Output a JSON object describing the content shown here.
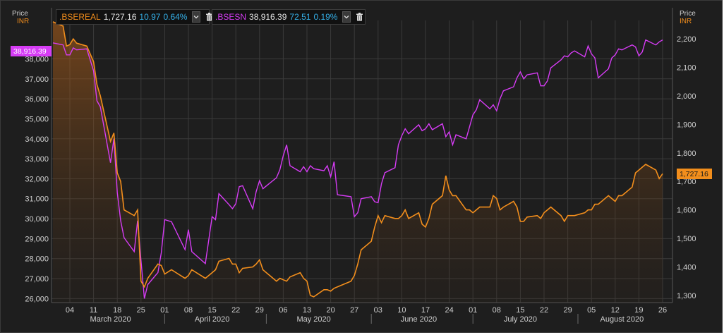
{
  "header": {
    "left_axis_head": {
      "line1": "Price",
      "line2": "INR"
    },
    "right_axis_head": {
      "line1": "Price",
      "line2": "INR"
    }
  },
  "legend": [
    {
      "name": ".BSEREAL",
      "value": "1,727.16",
      "change": "10.97",
      "pct": "0.64%",
      "color": "#f28e1c",
      "dropdown_icon": "chevron-down-icon",
      "delete_icon": "trash-icon"
    },
    {
      "name": ".BSESN",
      "value": "38,916.39",
      "change": "72.51",
      "pct": "0.19%",
      "color": "#d63cf5",
      "dropdown_icon": "chevron-down-icon",
      "delete_icon": "trash-icon"
    }
  ],
  "badges": {
    "left": "38,916.39",
    "right": "1,727.16"
  },
  "colors": {
    "bsesn": "#d63cf5",
    "bsereal": "#f28e1c",
    "background": "#1e1e1e",
    "grid": "#3b3b3b"
  },
  "chart_data": {
    "type": "line",
    "x": [
      "2020-02-28",
      "2020-03-02",
      "2020-03-03",
      "2020-03-04",
      "2020-03-05",
      "2020-03-06",
      "2020-03-09",
      "2020-03-11",
      "2020-03-12",
      "2020-03-13",
      "2020-03-16",
      "2020-03-17",
      "2020-03-18",
      "2020-03-19",
      "2020-03-20",
      "2020-03-23",
      "2020-03-24",
      "2020-03-25",
      "2020-03-26",
      "2020-03-27",
      "2020-03-30",
      "2020-03-31",
      "2020-04-01",
      "2020-04-03",
      "2020-04-07",
      "2020-04-08",
      "2020-04-09",
      "2020-04-13",
      "2020-04-15",
      "2020-04-16",
      "2020-04-17",
      "2020-04-20",
      "2020-04-21",
      "2020-04-22",
      "2020-04-23",
      "2020-04-24",
      "2020-04-27",
      "2020-04-28",
      "2020-04-29",
      "2020-04-30",
      "2020-05-04",
      "2020-05-05",
      "2020-05-06",
      "2020-05-07",
      "2020-05-08",
      "2020-05-11",
      "2020-05-12",
      "2020-05-13",
      "2020-05-14",
      "2020-05-15",
      "2020-05-18",
      "2020-05-19",
      "2020-05-20",
      "2020-05-21",
      "2020-05-22",
      "2020-05-26",
      "2020-05-27",
      "2020-05-28",
      "2020-05-29",
      "2020-06-01",
      "2020-06-02",
      "2020-06-03",
      "2020-06-04",
      "2020-06-05",
      "2020-06-08",
      "2020-06-09",
      "2020-06-10",
      "2020-06-11",
      "2020-06-12",
      "2020-06-15",
      "2020-06-16",
      "2020-06-17",
      "2020-06-18",
      "2020-06-19",
      "2020-06-22",
      "2020-06-23",
      "2020-06-24",
      "2020-06-25",
      "2020-06-26",
      "2020-06-29",
      "2020-06-30",
      "2020-07-01",
      "2020-07-02",
      "2020-07-03",
      "2020-07-06",
      "2020-07-07",
      "2020-07-08",
      "2020-07-09",
      "2020-07-10",
      "2020-07-13",
      "2020-07-14",
      "2020-07-15",
      "2020-07-16",
      "2020-07-17",
      "2020-07-20",
      "2020-07-21",
      "2020-07-22",
      "2020-07-23",
      "2020-07-24",
      "2020-07-27",
      "2020-07-28",
      "2020-07-29",
      "2020-07-30",
      "2020-07-31",
      "2020-08-03",
      "2020-08-04",
      "2020-08-05",
      "2020-08-06",
      "2020-08-07",
      "2020-08-10",
      "2020-08-11",
      "2020-08-12",
      "2020-08-13",
      "2020-08-14",
      "2020-08-17",
      "2020-08-18",
      "2020-08-19",
      "2020-08-20",
      "2020-08-21",
      "2020-08-24",
      "2020-08-25",
      "2020-08-26"
    ],
    "series": [
      {
        "name": ".BSESN",
        "axis": "left",
        "values": [
          38800,
          38700,
          38200,
          38200,
          38550,
          38450,
          38500,
          37400,
          35900,
          35600,
          32800,
          34000,
          31300,
          29900,
          29050,
          28350,
          29900,
          27900,
          26000,
          26700,
          27300,
          28300,
          29950,
          29850,
          28450,
          29450,
          28350,
          27750,
          30100,
          29950,
          31250,
          30700,
          30500,
          30750,
          31600,
          31650,
          30500,
          31350,
          31900,
          31500,
          32050,
          32450,
          33150,
          33700,
          32650,
          32350,
          32600,
          32350,
          32650,
          32500,
          32400,
          32650,
          32100,
          32850,
          31200,
          31100,
          30100,
          30300,
          31000,
          31100,
          30850,
          30800,
          31750,
          32300,
          32550,
          33700,
          34150,
          34500,
          34250,
          34700,
          34400,
          34500,
          34750,
          34450,
          34750,
          34100,
          34350,
          33700,
          34200,
          34000,
          34600,
          35200,
          35450,
          35950,
          35500,
          35700,
          35400,
          36000,
          36400,
          36600,
          37050,
          37350,
          37000,
          37200,
          37300,
          36650,
          36650,
          36900,
          37550,
          37950,
          38150,
          38100,
          38300,
          38400,
          38100,
          38650,
          38250,
          38050,
          37050,
          37500,
          38050,
          38200,
          38500,
          38450,
          38700,
          38600,
          38150,
          38350,
          38950,
          38700,
          38850,
          38950
        ]
      },
      {
        "name": ".BSEREAL",
        "axis": "right",
        "values": [
          2260,
          2245,
          2175,
          2180,
          2200,
          2185,
          2175,
          2120,
          2040,
          2000,
          1840,
          1870,
          1730,
          1700,
          1600,
          1580,
          1600,
          1350,
          1330,
          1360,
          1410,
          1405,
          1375,
          1390,
          1360,
          1370,
          1390,
          1360,
          1380,
          1390,
          1420,
          1430,
          1410,
          1410,
          1380,
          1395,
          1400,
          1410,
          1425,
          1390,
          1350,
          1360,
          1355,
          1350,
          1365,
          1380,
          1360,
          1350,
          1300,
          1295,
          1320,
          1320,
          1315,
          1325,
          1330,
          1350,
          1370,
          1410,
          1460,
          1490,
          1540,
          1580,
          1555,
          1580,
          1570,
          1570,
          1580,
          1600,
          1570,
          1590,
          1550,
          1540,
          1570,
          1620,
          1650,
          1720,
          1670,
          1650,
          1650,
          1600,
          1600,
          1590,
          1600,
          1610,
          1610,
          1650,
          1640,
          1600,
          1610,
          1630,
          1610,
          1560,
          1560,
          1575,
          1580,
          1570,
          1590,
          1600,
          1610,
          1580,
          1560,
          1580,
          1580,
          1580,
          1590,
          1600,
          1600,
          1620,
          1620,
          1650,
          1640,
          1630,
          1650,
          1650,
          1680,
          1730,
          1740,
          1750,
          1760,
          1740,
          1710,
          1727.16
        ]
      }
    ],
    "left_axis": {
      "ticks": [
        "26,000",
        "27,000",
        "28,000",
        "29,000",
        "30,000",
        "31,000",
        "32,000",
        "33,000",
        "34,000",
        "35,000",
        "36,000",
        "37,000",
        "38,000"
      ],
      "ylim": [
        25800,
        39500
      ]
    },
    "right_axis": {
      "ticks": [
        "1,300",
        "1,400",
        "1,500",
        "1,600",
        "1,700",
        "1,800",
        "1,900",
        "2,000",
        "2,100",
        "2,200"
      ],
      "ylim": [
        1275,
        2235
      ]
    },
    "x_ticks": [
      {
        "label": "04",
        "date": "2020-03-04"
      },
      {
        "label": "11",
        "date": "2020-03-11"
      },
      {
        "label": "18",
        "date": "2020-03-18"
      },
      {
        "label": "25",
        "date": "2020-03-25"
      },
      {
        "label": "01",
        "date": "2020-04-01"
      },
      {
        "label": "08",
        "date": "2020-04-08"
      },
      {
        "label": "15",
        "date": "2020-04-15"
      },
      {
        "label": "22",
        "date": "2020-04-22"
      },
      {
        "label": "29",
        "date": "2020-04-29"
      },
      {
        "label": "06",
        "date": "2020-05-06"
      },
      {
        "label": "13",
        "date": "2020-05-13"
      },
      {
        "label": "20",
        "date": "2020-05-20"
      },
      {
        "label": "27",
        "date": "2020-05-27"
      },
      {
        "label": "03",
        "date": "2020-06-03"
      },
      {
        "label": "10",
        "date": "2020-06-10"
      },
      {
        "label": "17",
        "date": "2020-06-17"
      },
      {
        "label": "24",
        "date": "2020-06-24"
      },
      {
        "label": "01",
        "date": "2020-07-01"
      },
      {
        "label": "08",
        "date": "2020-07-08"
      },
      {
        "label": "15",
        "date": "2020-07-15"
      },
      {
        "label": "22",
        "date": "2020-07-22"
      },
      {
        "label": "29",
        "date": "2020-07-29"
      },
      {
        "label": "05",
        "date": "2020-08-05"
      },
      {
        "label": "12",
        "date": "2020-08-12"
      },
      {
        "label": "19",
        "date": "2020-08-19"
      },
      {
        "label": "26",
        "date": "2020-08-26"
      }
    ],
    "month_labels": [
      {
        "label": "March 2020",
        "date": "2020-03-16"
      },
      {
        "label": "April 2020",
        "date": "2020-04-15"
      },
      {
        "label": "May 2020",
        "date": "2020-05-15"
      },
      {
        "label": "June 2020",
        "date": "2020-06-15"
      },
      {
        "label": "July 2020",
        "date": "2020-07-15"
      },
      {
        "label": "August 2020",
        "date": "2020-08-14"
      }
    ],
    "month_boundaries": [
      "2020-04-01",
      "2020-05-01",
      "2020-06-01",
      "2020-07-01",
      "2020-08-01"
    ],
    "grid": true,
    "area_fill_series": ".BSEREAL"
  }
}
